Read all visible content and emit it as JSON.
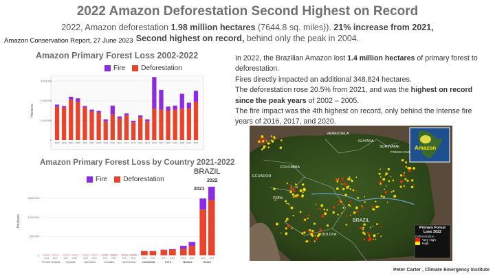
{
  "header": {
    "title": "2022 Amazon Deforestation Second Highest on Record",
    "sub1_plain": "2022, Amazon deforestation",
    "sub1_bold": "1.98 million hectares",
    "sub1_rest": "(7644.8 sq. miles)).",
    "sub1_bold2": "21% increase from 2021,",
    "sub2_bold": "Second highest on record,",
    "sub2_rest": "behind only the peak in 2004.",
    "source": "Amazon Conservation Report, 27 June 2023"
  },
  "paragraphs": [
    {
      "pre": "In 2022, the Brazilian Amazon lost ",
      "bold": "1.4 million hectares",
      "post": " of primary forest to deforestation."
    },
    {
      "pre": "Fires directly impacted an additional 348,824 hectares.",
      "bold": "",
      "post": ""
    },
    {
      "pre": "The deforestation rose 20.5% from 2021, and was the ",
      "bold": "highest on record since the peak years",
      "post": " of 2002 – 2005."
    },
    {
      "pre": "The fire impact was the 4th highest on record, only behind the intense fire years of 2016, 2017, and 2020.",
      "bold": "",
      "post": ""
    }
  ],
  "credit": "Peter Carter , Climate Emergency Institute",
  "map": {
    "labels": [
      "VENEZUELA",
      "GUYANA",
      "SURINAME",
      "FRENCH GUIANA",
      "COLOMBIA",
      "ECUADOR",
      "PERU",
      "BRAZIL",
      "BOLIVIA"
    ],
    "inset_label": "Amazon",
    "legend_title": "Primary Forest Loss 2022",
    "legend_sub": "Deforestation",
    "legend_items": [
      {
        "label": "Very High",
        "color": "#ff1a00"
      },
      {
        "label": "High",
        "color": "#ffe600"
      }
    ]
  },
  "colors": {
    "fire": "#8b2be2",
    "deforestation": "#e8432b"
  },
  "chart_data": [
    {
      "type": "bar",
      "title": "Amazon Primary Forest Loss 2002-2022",
      "legend": [
        "Fire",
        "Deforestation"
      ],
      "ylabel": "Hectares",
      "ylim": [
        0,
        3000000
      ],
      "yticks": [
        "0",
        "1,000,000",
        "2,000,000",
        "3,000,000"
      ],
      "categories": [
        "2002",
        "2003",
        "2004",
        "2005",
        "2006",
        "2007",
        "2008",
        "2009",
        "2010",
        "2011",
        "2012",
        "2013",
        "2014",
        "2015",
        "2016",
        "2017",
        "2018",
        "2019",
        "2020",
        "2021",
        "2022"
      ],
      "series": [
        {
          "name": "Deforestation",
          "values": [
            1700000,
            1650000,
            2050000,
            1950000,
            1650000,
            1450000,
            1400000,
            950000,
            1300000,
            1100000,
            1250000,
            900000,
            1150000,
            950000,
            1600000,
            1550000,
            1500000,
            1550000,
            1600000,
            1600000,
            1950000
          ]
        },
        {
          "name": "Fire",
          "values": [
            100000,
            80000,
            150000,
            170000,
            80000,
            100000,
            80000,
            100000,
            450000,
            100000,
            100000,
            80000,
            100000,
            100000,
            1600000,
            1000000,
            200000,
            200000,
            750000,
            300000,
            550000
          ]
        }
      ]
    },
    {
      "type": "bar",
      "title": "Amazon Primary Forest Loss by Country 2021-2022",
      "legend": [
        "Fire",
        "Deforestation"
      ],
      "ylabel": "Hectares",
      "ylim": [
        0,
        1800000
      ],
      "yticks": [
        "0",
        "500,000",
        "1,000,000",
        "1,500,000"
      ],
      "categories": [
        "French Guiana",
        "Guyana",
        "Suriname",
        "Ecuador",
        "Venezuela",
        "Colombia",
        "Peru",
        "Bolivia",
        "Brazil"
      ],
      "year_labels": [
        "2021",
        "2022"
      ],
      "annotations": {
        "country": "BRAZIL",
        "year1": "2021",
        "year2": "2022"
      },
      "series": [
        {
          "name": "Deforestation 2021",
          "values": [
            5000,
            8000,
            7000,
            15000,
            14000,
            110000,
            140000,
            170000,
            1200000
          ]
        },
        {
          "name": "Fire 2021",
          "values": [
            0,
            0,
            0,
            0,
            4000,
            5000,
            10000,
            80000,
            290000
          ]
        },
        {
          "name": "Deforestation 2022",
          "values": [
            5000,
            9000,
            8000,
            17000,
            16000,
            110000,
            150000,
            250000,
            1450000
          ]
        },
        {
          "name": "Fire 2022",
          "values": [
            0,
            0,
            0,
            0,
            4000,
            5000,
            15000,
            100000,
            350000
          ]
        }
      ]
    }
  ]
}
